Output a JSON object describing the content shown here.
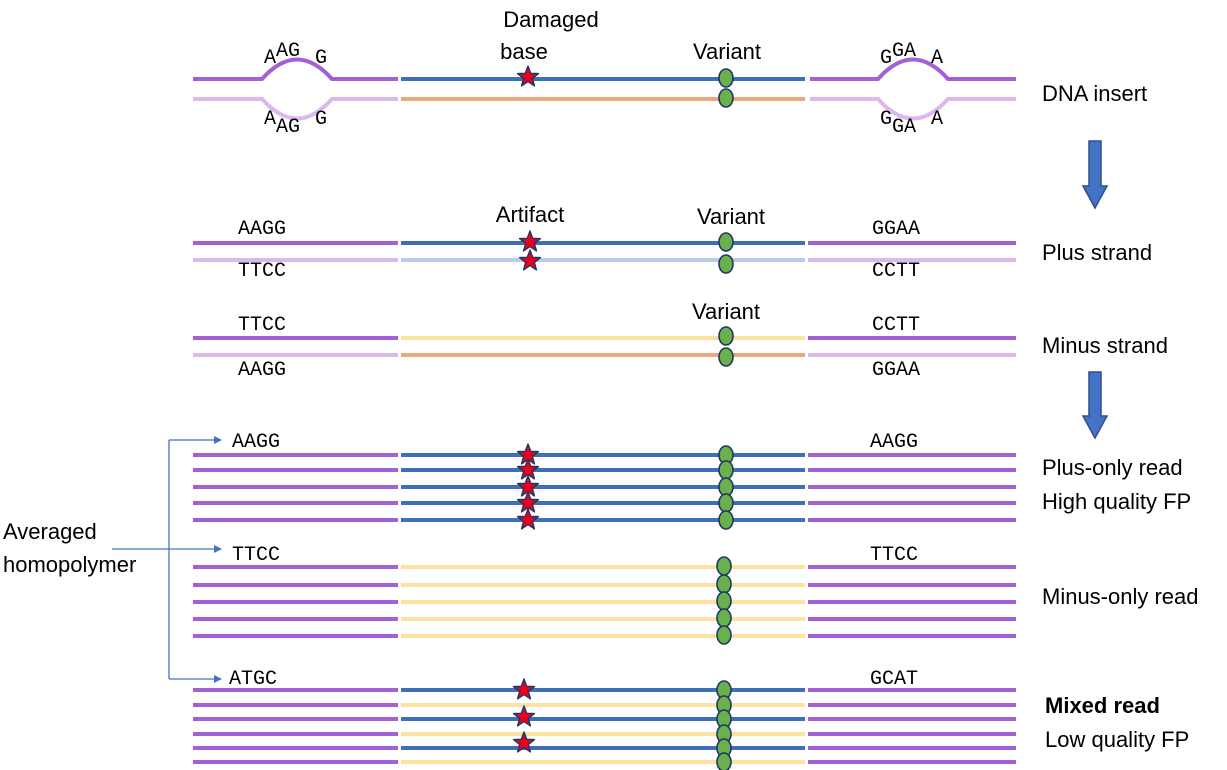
{
  "colors": {
    "purple": "#a55fd6",
    "light_purple": "#ddb8ee",
    "blue": "#3f6fb8",
    "light_blue": "#b8cce6",
    "orange": "#f0a878",
    "yellow": "#fbe2a0",
    "star_fill": "#e8001c",
    "star_stroke": "#1f3864",
    "dot_fill": "#6ab04c",
    "dot_stroke": "#1f3864",
    "arrow_fill": "#4472c4",
    "arrow_stroke": "#2f4f8f",
    "connector": "#4472c4"
  },
  "dna_insert": {
    "label": "DNA insert",
    "damaged_label_1": "Damaged",
    "damaged_label_2": "base",
    "variant_label": "Variant",
    "left_top": {
      "a": "A",
      "b": "AG",
      "c": "G"
    },
    "left_bottom": {
      "a": "A",
      "b": "AG",
      "c": "G"
    },
    "right_top": {
      "a": "G",
      "b": "GA",
      "c": "A"
    },
    "right_bottom": {
      "a": "G",
      "b": "GA",
      "c": "A"
    }
  },
  "plus_strand": {
    "label": "Plus strand",
    "artifact_label": "Artifact",
    "variant_label": "Variant",
    "left_top": "AAGG",
    "left_bottom": "TTCC",
    "right_top": "GGAA",
    "right_bottom": "CCTT"
  },
  "minus_strand": {
    "label": "Minus strand",
    "variant_label": "Variant",
    "left_top": "TTCC",
    "left_bottom": "AAGG",
    "right_top": "CCTT",
    "right_bottom": "GGAA"
  },
  "plus_only": {
    "label_1": "Plus-only read",
    "label_2": "High quality FP",
    "left_seq": "AAGG",
    "right_seq": "AAGG"
  },
  "minus_only": {
    "label": "Minus-only read",
    "left_seq": "TTCC",
    "right_seq": "TTCC"
  },
  "mixed": {
    "label_1": "Mixed read",
    "label_2": "Low quality FP",
    "left_seq": "ATGC",
    "right_seq": "GCAT"
  },
  "averaged": {
    "label_1": "Averaged",
    "label_2": "homopolymer"
  }
}
